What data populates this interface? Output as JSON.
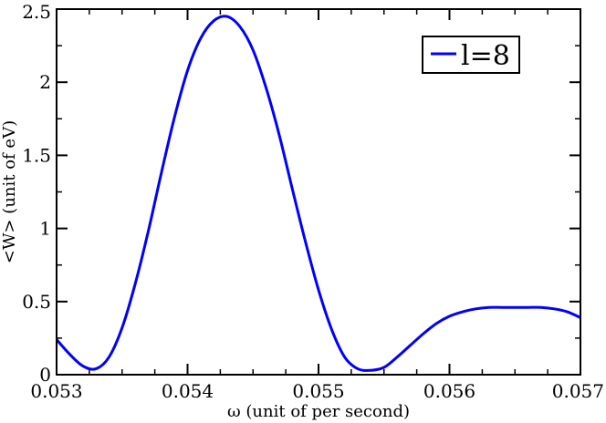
{
  "chart_data": {
    "type": "line",
    "title": "",
    "xlabel": "ω (unit of per second)",
    "ylabel": "<W> (unit of eV)",
    "xlim": [
      0.053,
      0.057
    ],
    "ylim": [
      0,
      2.5
    ],
    "x_ticks": [
      0.053,
      0.054,
      0.055,
      0.056,
      0.057
    ],
    "x_tick_labels": [
      "0.053",
      "0.054",
      "0.055",
      "0.056",
      "0.057"
    ],
    "y_ticks": [
      0,
      0.5,
      1,
      1.5,
      2,
      2.5
    ],
    "y_tick_labels": [
      "0",
      "0.5",
      "1",
      "1.5",
      "2",
      "2.5"
    ],
    "grid": false,
    "legend_position": "top-right",
    "colors": {
      "series": "#0000ff",
      "axes": "#000000"
    },
    "series": [
      {
        "name": "l=8",
        "x": [
          0.053,
          0.0531,
          0.0532,
          0.0533,
          0.0534,
          0.0535,
          0.0536,
          0.0537,
          0.0538,
          0.0539,
          0.054,
          0.0541,
          0.0542,
          0.0543,
          0.0544,
          0.0545,
          0.0546,
          0.0547,
          0.0548,
          0.0549,
          0.055,
          0.0551,
          0.0552,
          0.0553,
          0.0554,
          0.0555,
          0.0556,
          0.0557,
          0.0558,
          0.0559,
          0.056,
          0.0561,
          0.0562,
          0.0563,
          0.0564,
          0.0565,
          0.0566,
          0.0567,
          0.0568,
          0.0569,
          0.057
        ],
        "y": [
          0.24,
          0.14,
          0.06,
          0.04,
          0.12,
          0.32,
          0.62,
          0.98,
          1.38,
          1.76,
          2.08,
          2.3,
          2.42,
          2.45,
          2.38,
          2.22,
          1.96,
          1.64,
          1.27,
          0.91,
          0.58,
          0.31,
          0.12,
          0.04,
          0.03,
          0.05,
          0.12,
          0.2,
          0.28,
          0.35,
          0.4,
          0.43,
          0.45,
          0.46,
          0.46,
          0.46,
          0.46,
          0.46,
          0.45,
          0.43,
          0.39
        ]
      }
    ]
  }
}
